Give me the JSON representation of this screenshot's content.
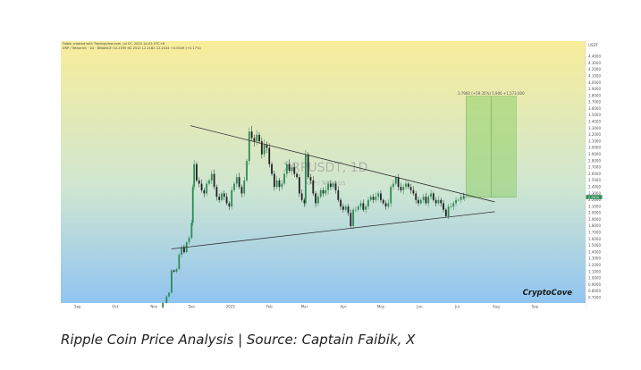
{
  "caption": "Ripple Coin Price Analysis | Source: Captain Faibik, X",
  "chart_data": {
    "type": "candlestick",
    "symbol_watermark": "XRPUSDT, 1D",
    "pair_watermark": "XRP / TetherUS",
    "branding": "CryptoCove",
    "tradingview_mark": "TV",
    "header_line_1": "Faibik created with TradingView.com, Jul 07, 2025 14:43 UTC+8",
    "header_line_2": "XRP / TetherUS · 1D · BINANCE  O2.2395  H2.2512  L2.2182  C2.2434  +0.0039 (+0.17%)",
    "x_tick_labels": [
      "Sep",
      "Oct",
      "Nov",
      "Dec",
      "2025",
      "Feb",
      "Mar",
      "Apr",
      "May",
      "Jun",
      "Jul",
      "Aug",
      "Sep"
    ],
    "y_tick_labels": [
      "4.4000",
      "4.3000",
      "4.2000",
      "4.1000",
      "4.0000",
      "3.9000",
      "3.8000",
      "3.7000",
      "3.6000",
      "3.5000",
      "3.4000",
      "3.3000",
      "3.2000",
      "3.1000",
      "3.0000",
      "2.9000",
      "2.8000",
      "2.7000",
      "2.6000",
      "2.5000",
      "2.4000",
      "2.3000",
      "2.2000",
      "2.1000",
      "2.0000",
      "1.9000",
      "1.8000",
      "1.7000",
      "1.6000",
      "1.5000",
      "1.4000",
      "1.3000",
      "1.2000",
      "1.1000",
      "1.0000",
      "0.9000",
      "0.8000",
      "0.7000"
    ],
    "axis_currency": "USDT",
    "last_price_label": "2.2434",
    "ylim": [
      0.62,
      4.5
    ],
    "target_label": "3.7960 (+59.35%) 5,906 +1,573,000",
    "target_box": {
      "x_start": "2025-07-08",
      "x_end": "2025-08-17",
      "price_low": 2.24,
      "price_high": 3.79
    },
    "trendlines": [
      {
        "name": "upper-resistance",
        "start": {
          "x": "2024-11-30",
          "y": 3.34
        },
        "end": {
          "x": "2025-07-31",
          "y": 2.17
        }
      },
      {
        "name": "lower-support",
        "start": {
          "x": "2024-11-15",
          "y": 1.45
        },
        "end": {
          "x": "2025-07-31",
          "y": 2.02
        }
      }
    ],
    "price_path": [
      [
        "2024-11-05",
        0.55
      ],
      [
        "2024-11-08",
        0.62
      ],
      [
        "2024-11-11",
        0.72
      ],
      [
        "2024-11-13",
        0.78
      ],
      [
        "2024-11-15",
        1.12
      ],
      [
        "2024-11-17",
        1.1
      ],
      [
        "2024-11-19",
        1.14
      ],
      [
        "2024-11-21",
        1.36
      ],
      [
        "2024-11-23",
        1.48
      ],
      [
        "2024-11-25",
        1.4
      ],
      [
        "2024-11-27",
        1.55
      ],
      [
        "2024-11-29",
        1.62
      ],
      [
        "2024-12-01",
        1.85
      ],
      [
        "2024-12-02",
        2.4
      ],
      [
        "2024-12-03",
        2.75
      ],
      [
        "2024-12-05",
        2.5
      ],
      [
        "2024-12-07",
        2.45
      ],
      [
        "2024-12-09",
        2.35
      ],
      [
        "2024-12-11",
        2.3
      ],
      [
        "2024-12-13",
        2.45
      ],
      [
        "2024-12-15",
        2.5
      ],
      [
        "2024-12-17",
        2.6
      ],
      [
        "2024-12-19",
        2.4
      ],
      [
        "2024-12-21",
        2.25
      ],
      [
        "2024-12-23",
        2.2
      ],
      [
        "2024-12-25",
        2.3
      ],
      [
        "2024-12-27",
        2.25
      ],
      [
        "2024-12-29",
        2.15
      ],
      [
        "2024-12-31",
        2.1
      ],
      [
        "2025-01-02",
        2.35
      ],
      [
        "2025-01-04",
        2.45
      ],
      [
        "2025-01-06",
        2.55
      ],
      [
        "2025-01-08",
        2.4
      ],
      [
        "2025-01-10",
        2.3
      ],
      [
        "2025-01-12",
        2.5
      ],
      [
        "2025-01-14",
        2.8
      ],
      [
        "2025-01-16",
        3.25
      ],
      [
        "2025-01-18",
        3.15
      ],
      [
        "2025-01-20",
        3.1
      ],
      [
        "2025-01-22",
        3.2
      ],
      [
        "2025-01-24",
        3.1
      ],
      [
        "2025-01-26",
        2.9
      ],
      [
        "2025-01-28",
        3.05
      ],
      [
        "2025-01-30",
        3.0
      ],
      [
        "2025-02-01",
        2.75
      ],
      [
        "2025-02-03",
        2.6
      ],
      [
        "2025-02-05",
        2.4
      ],
      [
        "2025-02-07",
        2.5
      ],
      [
        "2025-02-09",
        2.4
      ],
      [
        "2025-02-11",
        2.45
      ],
      [
        "2025-02-13",
        2.6
      ],
      [
        "2025-02-15",
        2.75
      ],
      [
        "2025-02-17",
        2.65
      ],
      [
        "2025-02-19",
        2.7
      ],
      [
        "2025-02-21",
        2.6
      ],
      [
        "2025-02-23",
        2.55
      ],
      [
        "2025-02-25",
        2.3
      ],
      [
        "2025-02-27",
        2.2
      ],
      [
        "2025-03-01",
        2.15
      ],
      [
        "2025-03-02",
        2.9
      ],
      [
        "2025-03-04",
        2.55
      ],
      [
        "2025-03-06",
        2.5
      ],
      [
        "2025-03-08",
        2.3
      ],
      [
        "2025-03-10",
        2.15
      ],
      [
        "2025-03-12",
        2.25
      ],
      [
        "2025-03-14",
        2.35
      ],
      [
        "2025-03-16",
        2.3
      ],
      [
        "2025-03-18",
        2.35
      ],
      [
        "2025-03-20",
        2.45
      ],
      [
        "2025-03-22",
        2.4
      ],
      [
        "2025-03-24",
        2.45
      ],
      [
        "2025-03-26",
        2.35
      ],
      [
        "2025-03-28",
        2.2
      ],
      [
        "2025-03-30",
        2.1
      ],
      [
        "2025-04-01",
        2.05
      ],
      [
        "2025-04-03",
        2.1
      ],
      [
        "2025-04-05",
        2.0
      ],
      [
        "2025-04-07",
        1.8
      ],
      [
        "2025-04-09",
        2.05
      ],
      [
        "2025-04-11",
        2.05
      ],
      [
        "2025-04-13",
        2.1
      ],
      [
        "2025-04-15",
        2.15
      ],
      [
        "2025-04-17",
        2.05
      ],
      [
        "2025-04-19",
        2.1
      ],
      [
        "2025-04-21",
        2.2
      ],
      [
        "2025-04-23",
        2.25
      ],
      [
        "2025-04-25",
        2.2
      ],
      [
        "2025-04-27",
        2.25
      ],
      [
        "2025-04-29",
        2.3
      ],
      [
        "2025-05-01",
        2.2
      ],
      [
        "2025-05-03",
        2.15
      ],
      [
        "2025-05-05",
        2.1
      ],
      [
        "2025-05-07",
        2.15
      ],
      [
        "2025-05-09",
        2.4
      ],
      [
        "2025-05-11",
        2.45
      ],
      [
        "2025-05-13",
        2.55
      ],
      [
        "2025-05-15",
        2.4
      ],
      [
        "2025-05-17",
        2.35
      ],
      [
        "2025-05-19",
        2.4
      ],
      [
        "2025-05-21",
        2.45
      ],
      [
        "2025-05-23",
        2.4
      ],
      [
        "2025-05-25",
        2.35
      ],
      [
        "2025-05-27",
        2.3
      ],
      [
        "2025-05-29",
        2.2
      ],
      [
        "2025-05-31",
        2.15
      ],
      [
        "2025-06-02",
        2.2
      ],
      [
        "2025-06-04",
        2.25
      ],
      [
        "2025-06-06",
        2.15
      ],
      [
        "2025-06-08",
        2.25
      ],
      [
        "2025-06-10",
        2.3
      ],
      [
        "2025-06-12",
        2.2
      ],
      [
        "2025-06-14",
        2.15
      ],
      [
        "2025-06-16",
        2.2
      ],
      [
        "2025-06-18",
        2.15
      ],
      [
        "2025-06-20",
        2.05
      ],
      [
        "2025-06-22",
        1.95
      ],
      [
        "2025-06-24",
        2.1
      ],
      [
        "2025-06-26",
        2.1
      ],
      [
        "2025-06-28",
        2.15
      ],
      [
        "2025-06-30",
        2.2
      ],
      [
        "2025-07-02",
        2.2
      ],
      [
        "2025-07-04",
        2.25
      ],
      [
        "2025-07-06",
        2.24
      ],
      [
        "2025-07-07",
        2.24
      ]
    ],
    "grid": false,
    "background_gradient": [
      "#f8ed9a",
      "#cfe6d2",
      "#8dc2f2"
    ],
    "colors": {
      "up": "#2e8b57",
      "down": "#222222",
      "target_fill": "#8fd06a",
      "trendline": "#333333",
      "brand": "#1a1a1a"
    }
  }
}
